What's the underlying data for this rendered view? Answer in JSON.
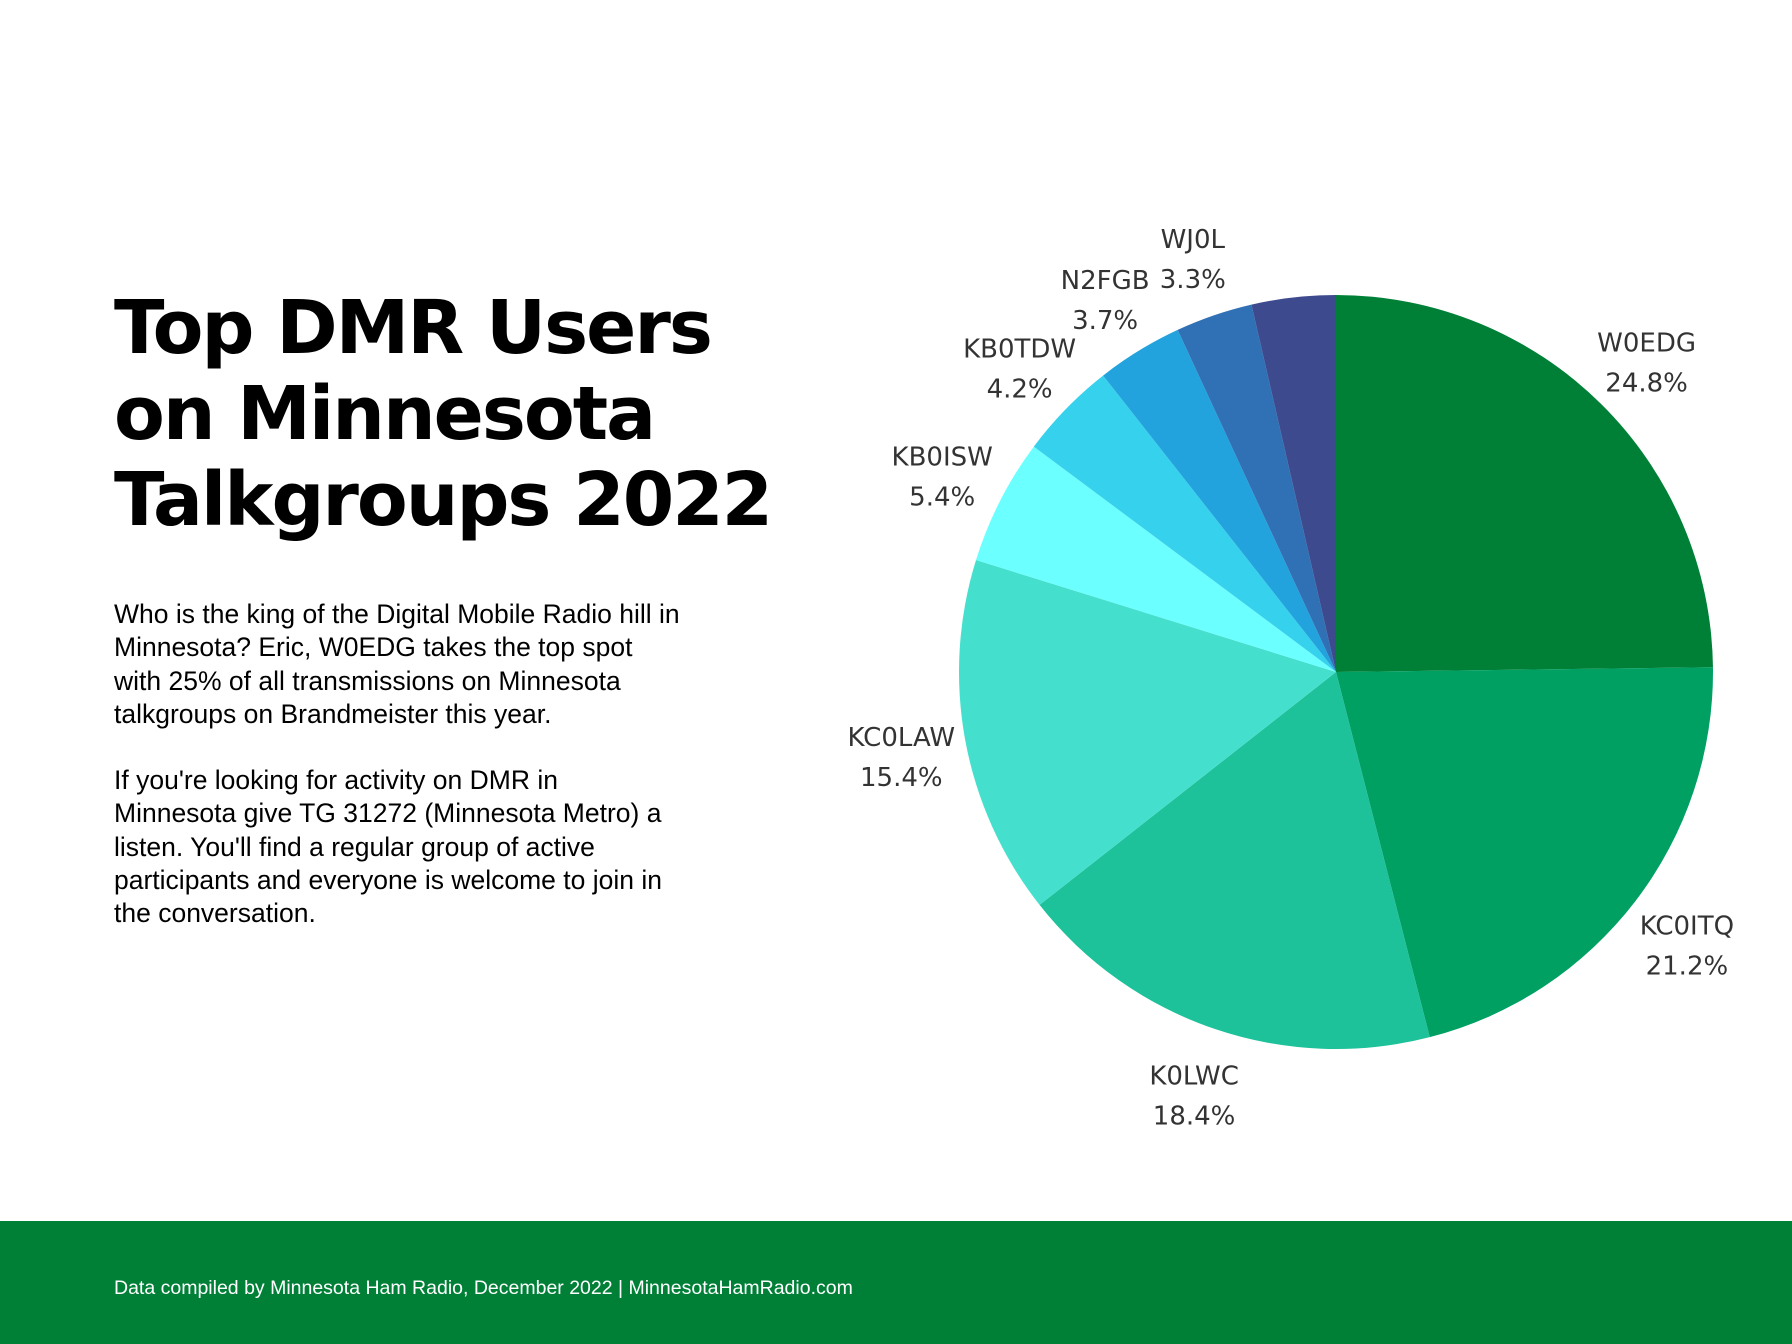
{
  "title_lines": [
    "Top DMR Users",
    "on Minnesota",
    "Talkgroups 2022"
  ],
  "paragraphs": [
    "Who is the king of the Digital Mobile Radio hill in Minnesota? Eric, W0EDG takes the top spot with 25% of all transmissions on Minnesota talkgroups on Brandmeister this year.",
    "If you're looking for activity on DMR in Minnesota give TG 31272 (Minnesota Metro) a listen. You'll find a regular group of active participants and everyone is welcome to join in the conversation."
  ],
  "footer": {
    "text": "Data compiled by Minnesota Ham Radio, December 2022 | MinnesotaHamRadio.com",
    "color": "#008037"
  },
  "chart_data": {
    "type": "pie",
    "start": "12 o'clock",
    "direction": "clockwise",
    "legend": "none",
    "slices": [
      {
        "label": "W0EDG",
        "value": 24.8,
        "value_label": "24.8%",
        "color": "#008037"
      },
      {
        "label": "KC0ITQ",
        "value": 21.2,
        "value_label": "21.2%",
        "color": "#00A063"
      },
      {
        "label": "K0LWC",
        "value": 18.4,
        "value_label": "18.4%",
        "color": "#1DC19A"
      },
      {
        "label": "KC0LAW",
        "value": 15.4,
        "value_label": "15.4%",
        "color": "#45E0CD"
      },
      {
        "label": "KB0ISW",
        "value": 5.4,
        "value_label": "5.4%",
        "color": "#6CFFFF"
      },
      {
        "label": "KB0TDW",
        "value": 4.2,
        "value_label": "4.2%",
        "color": "#36D1EC"
      },
      {
        "label": "N2FGB",
        "value": 3.7,
        "value_label": "3.7%",
        "color": "#23A3DD"
      },
      {
        "label": "WJ0L",
        "value": 3.3,
        "value_label": "3.3%",
        "color": "#3071B6"
      },
      {
        "label": "",
        "value": 3.6,
        "value_label": "",
        "color": "#3D4A8D"
      }
    ]
  }
}
